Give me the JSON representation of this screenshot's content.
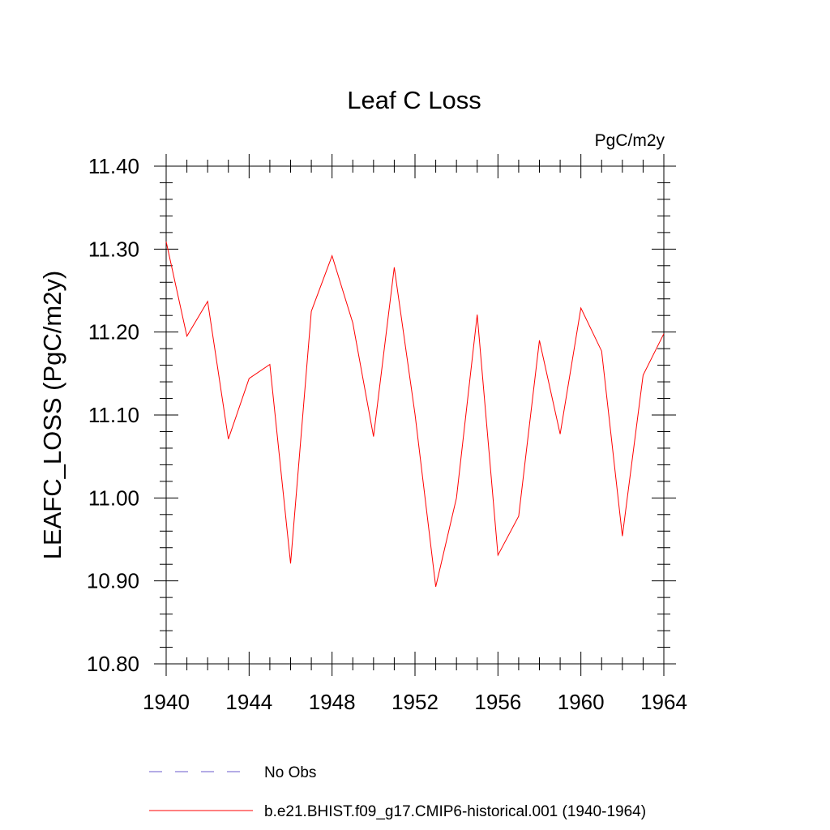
{
  "chart_data": {
    "type": "line",
    "title": "Leaf C Loss",
    "units": "PgC/m2y",
    "ylabel": "LEAFC_LOSS  (PgC/m2y)",
    "xlabel": "",
    "xlim": [
      1940,
      1964
    ],
    "ylim": [
      10.8,
      11.4
    ],
    "x_major_ticks": [
      1940,
      1944,
      1948,
      1952,
      1956,
      1960,
      1964
    ],
    "x_minor_step": 1,
    "y_major_ticks": [
      10.8,
      10.9,
      11.0,
      11.1,
      11.2,
      11.3,
      11.4
    ],
    "y_tick_labels": [
      "10.80",
      "10.90",
      "11.00",
      "11.10",
      "11.20",
      "11.30",
      "11.40"
    ],
    "y_minor_step": 0.02,
    "x_tick_labels": [
      "1940",
      "1944",
      "1948",
      "1952",
      "1956",
      "1960",
      "1964"
    ],
    "grid": false,
    "legend_placement": "bottom",
    "x": [
      1940,
      1941,
      1942,
      1943,
      1944,
      1945,
      1946,
      1947,
      1948,
      1949,
      1950,
      1951,
      1952,
      1953,
      1954,
      1955,
      1956,
      1957,
      1958,
      1959,
      1960,
      1961,
      1962,
      1963,
      1964
    ],
    "series": [
      {
        "name": "b.e21.BHIST.f09_g17.CMIP6-historical.001 (1940-1964)",
        "color": "#ff0000",
        "dash": "solid",
        "values": [
          11.309,
          11.195,
          11.237,
          11.071,
          11.144,
          11.161,
          10.921,
          11.225,
          11.292,
          11.211,
          11.074,
          11.278,
          11.101,
          10.893,
          11.0,
          11.221,
          10.931,
          10.978,
          11.19,
          11.077,
          11.229,
          11.177,
          10.954,
          11.148,
          11.198
        ]
      }
    ],
    "legend": [
      {
        "label": "No Obs",
        "color": "#6a5acd",
        "dash": "dashed"
      },
      {
        "label": "b.e21.BHIST.f09_g17.CMIP6-historical.001 (1940-1964)",
        "color": "#ff0000",
        "dash": "solid"
      }
    ]
  }
}
